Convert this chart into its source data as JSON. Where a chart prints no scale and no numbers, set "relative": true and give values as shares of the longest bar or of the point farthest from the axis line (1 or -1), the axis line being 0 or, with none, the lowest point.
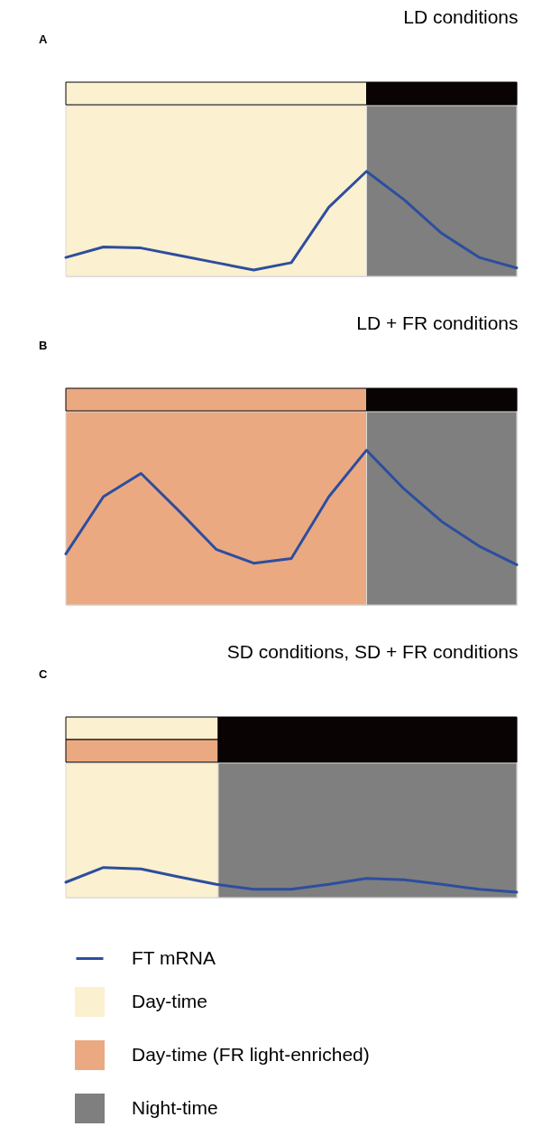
{
  "chart_data": [
    {
      "type": "line",
      "relative": true,
      "title": "LD conditions",
      "annotations": [
        "A"
      ],
      "categories": [
        null,
        null,
        null,
        null,
        null,
        null,
        null,
        null,
        null,
        null,
        null,
        null,
        null
      ],
      "series": [
        {
          "color": "#2d4e9e",
          "values": [
            0.18,
            0.28,
            0.27,
            0.2,
            0.13,
            0.06,
            0.13,
            0.66,
            1,
            0.73,
            0.41,
            0.18,
            0.08
          ]
        }
      ]
    },
    {
      "type": "line",
      "relative": true,
      "title": "LD + FR conditions",
      "annotations": [
        "B"
      ],
      "categories": [
        null,
        null,
        null,
        null,
        null,
        null,
        null,
        null,
        null,
        null,
        null,
        null,
        null
      ],
      "series": [
        {
          "color": "#2d4e9e",
          "values": [
            0.33,
            0.7,
            0.85,
            0.61,
            0.36,
            0.27,
            0.3,
            0.7,
            1,
            0.75,
            0.54,
            0.38,
            0.26
          ]
        }
      ]
    },
    {
      "type": "line",
      "relative": true,
      "title": "SD conditions, SD + FR conditions",
      "annotations": [
        "C",
        "Day-time",
        "Day-time (FR light-enriched)",
        "Night-time"
      ],
      "legend": "bottom",
      "categories": [
        null,
        null,
        null,
        null,
        null,
        null,
        null,
        null,
        null,
        null,
        null,
        null,
        null
      ],
      "series": [
        {
          "name": "FT mRNA",
          "color": "#2d4e9e",
          "values": [
            0.51,
            1,
            0.95,
            0.69,
            0.44,
            0.28,
            0.28,
            0.44,
            0.64,
            0.59,
            0.44,
            0.28,
            0.18
          ]
        }
      ]
    }
  ]
}
